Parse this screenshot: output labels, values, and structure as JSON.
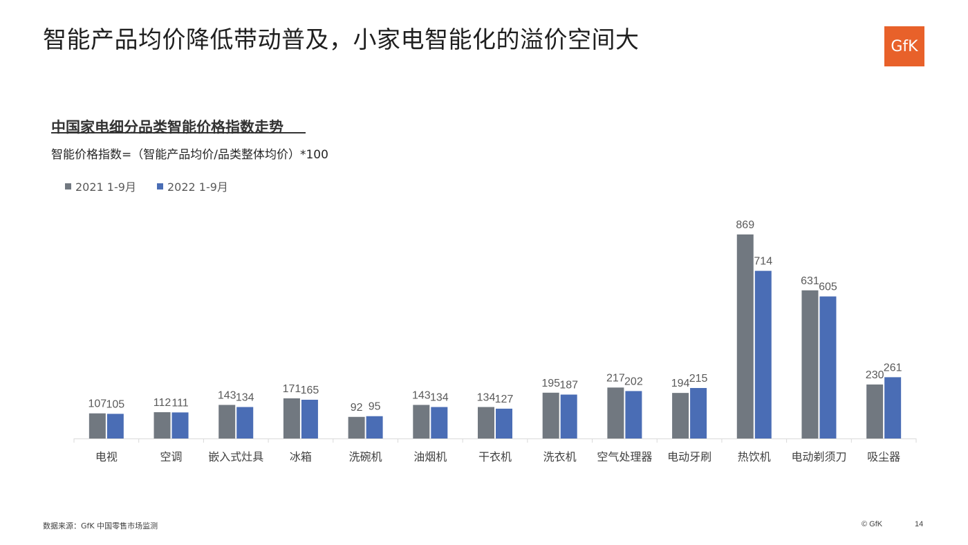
{
  "slide": {
    "title": "智能产品均价降低带动普及，小家电智能化的溢价空间大",
    "logo_text": "GfK",
    "footer_source": "数据来源：GfK 中国零售市场监测",
    "footer_copyright": "© GfK",
    "page_number": "14"
  },
  "colors": {
    "series_2021": "#717880",
    "series_2022": "#4a6db5",
    "logo_bg": "#e8612a"
  },
  "chart_data": {
    "type": "bar",
    "title": "中国家电细分品类智能价格指数走势",
    "subtitle": "智能价格指数=（智能产品均价/品类整体均价）*100",
    "categories": [
      "电视",
      "空调",
      "嵌入式灶具",
      "冰箱",
      "洗碗机",
      "油烟机",
      "干衣机",
      "洗衣机",
      "空气处理器",
      "电动牙刷",
      "热饮机",
      "电动剃须刀",
      "吸尘器"
    ],
    "series": [
      {
        "name": "2021 1-9月",
        "values": [
          107,
          112,
          143,
          171,
          92,
          143,
          134,
          195,
          217,
          194,
          869,
          631,
          230
        ]
      },
      {
        "name": "2022 1-9月",
        "values": [
          105,
          111,
          134,
          165,
          95,
          134,
          127,
          187,
          202,
          215,
          714,
          605,
          261
        ]
      }
    ],
    "ylim": [
      0,
      1000
    ],
    "grid": false,
    "legend_position": "top-left",
    "data_labels": true
  }
}
